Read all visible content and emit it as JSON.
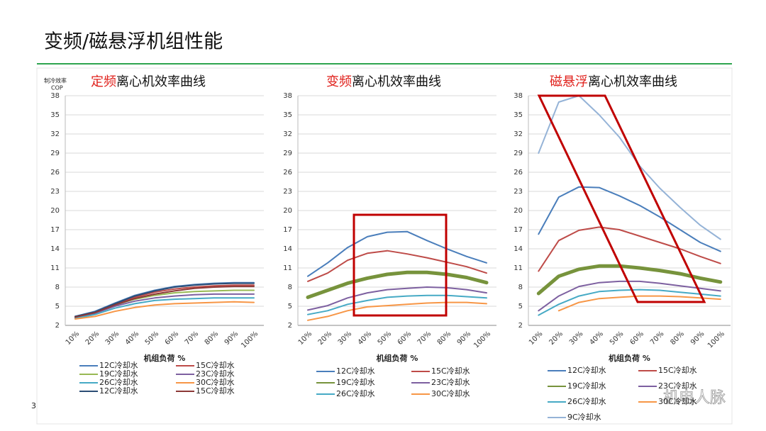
{
  "slide": {
    "title": "变频/磁悬浮机组性能",
    "page_number": "3",
    "watermark": "机电人脉"
  },
  "chart_data": [
    {
      "type": "line",
      "title_prefix": "定频",
      "title": "离心机效率曲线",
      "ylabel": [
        "制冷效率",
        "COP"
      ],
      "xlabel": "机组负荷 %",
      "categories": [
        "10%",
        "20%",
        "30%",
        "40%",
        "50%",
        "60%",
        "70%",
        "80%",
        "90%",
        "100%"
      ],
      "ylim": [
        2,
        38
      ],
      "yticks": [
        2,
        5,
        8,
        11,
        14,
        17,
        20,
        23,
        26,
        29,
        32,
        35,
        38
      ],
      "grid": true,
      "series": [
        {
          "name": "12C冷却水",
          "color": "#4a7ebb",
          "width": 2,
          "values": [
            3.4,
            4.2,
            5.5,
            6.7,
            7.5,
            8.1,
            8.4,
            8.6,
            8.7,
            8.7
          ]
        },
        {
          "name": "15C冷却水",
          "color": "#be4b48",
          "width": 2,
          "values": [
            3.3,
            4.0,
            5.3,
            6.4,
            7.2,
            7.7,
            8.0,
            8.2,
            8.3,
            8.3
          ]
        },
        {
          "name": "19C冷却水",
          "color": "#98b954",
          "width": 2,
          "values": [
            3.3,
            4.0,
            5.2,
            6.1,
            6.7,
            7.1,
            7.3,
            7.4,
            7.5,
            7.5
          ]
        },
        {
          "name": "23C冷却水",
          "color": "#7d60a0",
          "width": 2,
          "values": [
            3.2,
            3.9,
            5.0,
            5.8,
            6.3,
            6.6,
            6.8,
            6.9,
            6.9,
            6.9
          ]
        },
        {
          "name": "26C冷却水",
          "color": "#46aac5",
          "width": 2,
          "values": [
            3.1,
            3.7,
            4.7,
            5.4,
            5.9,
            6.1,
            6.2,
            6.3,
            6.3,
            6.3
          ]
        },
        {
          "name": "30C冷却水",
          "color": "#f79646",
          "width": 2,
          "values": [
            3.0,
            3.4,
            4.2,
            4.8,
            5.2,
            5.4,
            5.5,
            5.6,
            5.7,
            5.6
          ]
        },
        {
          "name": "12C冷却水",
          "color": "#2c4d75",
          "width": 2,
          "values": [
            3.4,
            4.1,
            5.4,
            6.6,
            7.4,
            8.0,
            8.3,
            8.5,
            8.6,
            8.6
          ]
        },
        {
          "name": "15C冷却水",
          "color": "#8c3836",
          "width": 2,
          "values": [
            3.3,
            4.0,
            5.2,
            6.2,
            6.9,
            7.4,
            7.8,
            8.0,
            8.1,
            8.1
          ]
        }
      ]
    },
    {
      "type": "line",
      "title_prefix": "变频",
      "title": "离心机效率曲线",
      "xlabel": "机组负荷 %",
      "categories": [
        "10%",
        "20%",
        "30%",
        "40%",
        "50%",
        "60%",
        "70%",
        "80%",
        "90%",
        "100%"
      ],
      "ylim": [
        2,
        38
      ],
      "yticks": [
        2,
        5,
        8,
        11,
        14,
        17,
        20,
        23,
        26,
        29,
        32,
        35,
        38
      ],
      "grid": true,
      "series": [
        {
          "name": "12C冷却水",
          "color": "#4a7ebb",
          "width": 2,
          "values": [
            9.7,
            11.8,
            14.2,
            15.9,
            16.6,
            16.7,
            15.3,
            14.0,
            12.8,
            11.8
          ]
        },
        {
          "name": "15C冷却水",
          "color": "#be4b48",
          "width": 2,
          "values": [
            8.9,
            10.2,
            12.2,
            13.3,
            13.7,
            13.2,
            12.6,
            11.9,
            11.2,
            10.2
          ]
        },
        {
          "name": "19C冷却水",
          "color": "#77933c",
          "width": 5,
          "values": [
            6.4,
            7.5,
            8.6,
            9.4,
            10.0,
            10.3,
            10.3,
            10.0,
            9.5,
            8.7
          ]
        },
        {
          "name": "23C冷却水",
          "color": "#7d60a0",
          "width": 2,
          "values": [
            4.4,
            5.1,
            6.3,
            7.1,
            7.6,
            7.8,
            8.0,
            7.9,
            7.6,
            7.1
          ]
        },
        {
          "name": "26C冷却水",
          "color": "#46aac5",
          "width": 2,
          "values": [
            3.7,
            4.3,
            5.3,
            5.9,
            6.4,
            6.6,
            6.7,
            6.7,
            6.5,
            6.3
          ]
        },
        {
          "name": "30C冷却水",
          "color": "#f79646",
          "width": 2,
          "values": [
            2.8,
            3.4,
            4.3,
            4.9,
            5.1,
            5.3,
            5.5,
            5.6,
            5.6,
            5.4
          ]
        }
      ]
    },
    {
      "type": "line",
      "title_prefix": "磁悬浮",
      "title": "离心机效率曲线",
      "xlabel": "机组负荷 %",
      "categories": [
        "10%",
        "20%",
        "30%",
        "40%",
        "50%",
        "60%",
        "70%",
        "80%",
        "90%",
        "100%"
      ],
      "ylim": [
        2,
        38
      ],
      "yticks": [
        2,
        5,
        8,
        11,
        14,
        17,
        20,
        23,
        26,
        29,
        32,
        35,
        38
      ],
      "grid": true,
      "series": [
        {
          "name": "12C冷却水",
          "color": "#4a7ebb",
          "width": 2,
          "values": [
            16.3,
            22.1,
            23.7,
            23.6,
            22.3,
            20.8,
            19.0,
            17.0,
            15.0,
            13.6
          ]
        },
        {
          "name": "15C冷却水",
          "color": "#be4b48",
          "width": 2,
          "values": [
            10.5,
            15.3,
            16.9,
            17.4,
            17.0,
            16.0,
            15.0,
            14.0,
            12.8,
            11.7
          ]
        },
        {
          "name": "19C冷却水",
          "color": "#77933c",
          "width": 5,
          "values": [
            7.0,
            9.7,
            10.8,
            11.3,
            11.3,
            11.0,
            10.6,
            10.1,
            9.4,
            8.8
          ]
        },
        {
          "name": "23C冷却水",
          "color": "#7d60a0",
          "width": 2,
          "values": [
            4.3,
            6.6,
            8.1,
            8.7,
            8.9,
            8.9,
            8.6,
            8.2,
            7.8,
            7.4
          ]
        },
        {
          "name": "26C冷却水",
          "color": "#46aac5",
          "width": 2,
          "values": [
            3.6,
            5.3,
            6.6,
            7.3,
            7.5,
            7.6,
            7.5,
            7.2,
            6.9,
            6.6
          ]
        },
        {
          "name": "30C冷却水",
          "color": "#f79646",
          "width": 2,
          "values": [
            null,
            4.3,
            5.6,
            6.2,
            6.4,
            6.6,
            6.6,
            6.5,
            6.3,
            6.1
          ]
        },
        {
          "name": "9C冷却水",
          "color": "#95b3d7",
          "width": 2,
          "values": [
            29,
            37,
            38,
            35,
            31.5,
            27,
            23.5,
            20.5,
            17.7,
            15.5
          ]
        }
      ]
    }
  ]
}
